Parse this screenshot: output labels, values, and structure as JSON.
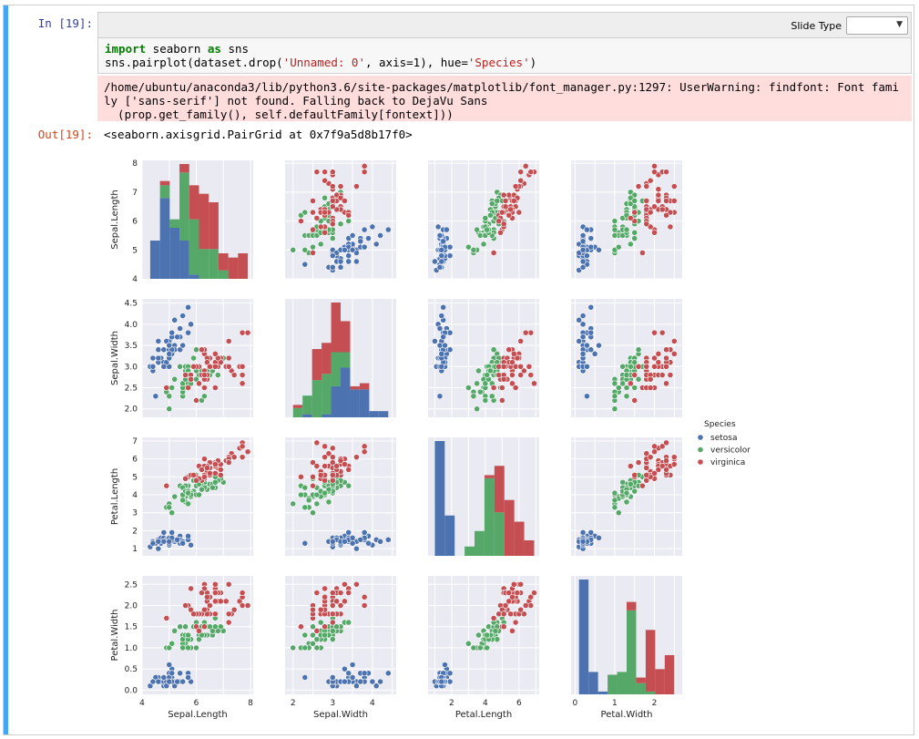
{
  "cell": {
    "in_prompt": "In [19]:",
    "out_prompt": "Out[19]:",
    "slide_type_label": "Slide Type",
    "slide_type_value": "",
    "code_line1_kw1": "import",
    "code_line1_mid": " seaborn ",
    "code_line1_kw2": "as",
    "code_line1_end": " sns",
    "code_line2_a": "sns.pairplot(dataset.drop(",
    "code_line2_s1": "'Unnamed: 0'",
    "code_line2_b": ", axis=1), hue=",
    "code_line2_s2": "'Species'",
    "code_line2_c": ")",
    "stderr_line1": "/home/ubuntu/anaconda3/lib/python3.6/site-packages/matplotlib/font_manager.py:1297: UserWarning: findfont: Font fami",
    "stderr_line2": "ly ['sans-serif'] not found. Falling back to DejaVu Sans",
    "stderr_line3": "  (prop.get_family(), self.defaultFamily[fontext]))",
    "output_text": "<seaborn.axisgrid.PairGrid at 0x7f9a5d8b17f0>"
  },
  "colors": {
    "setosa": "#4c72b0",
    "versicolor": "#55a868",
    "virginica": "#c44e52",
    "panel_bg": "#eaeaf2"
  },
  "chart_data": {
    "type": "scatter",
    "title": "",
    "variables": [
      "Sepal.Length",
      "Sepal.Width",
      "Petal.Length",
      "Petal.Width"
    ],
    "ranges": {
      "Sepal.Length": [
        4,
        8.1
      ],
      "Sepal.Width": [
        1.8,
        4.6
      ],
      "Petal.Length": [
        0.6,
        7.2
      ],
      "Petal.Width": [
        -0.1,
        2.7
      ]
    },
    "ticks": {
      "Sepal.Length": [
        4,
        5,
        6,
        7,
        8
      ],
      "Sepal.Width": [
        2.0,
        2.5,
        3.0,
        3.5,
        4.0,
        4.5
      ],
      "Petal.Length": [
        1,
        2,
        3,
        4,
        5,
        6,
        7
      ],
      "Petal.Width": [
        0.0,
        0.5,
        1.0,
        1.5,
        2.0,
        2.5
      ]
    },
    "xticks": {
      "Sepal.Length": [
        4,
        6,
        8
      ],
      "Sepal.Width": [
        2,
        3,
        4
      ],
      "Petal.Length": [
        2,
        4,
        6
      ],
      "Petal.Width": [
        0,
        1,
        2
      ]
    },
    "legend": {
      "title": "Species",
      "placement": "right",
      "entries": [
        "setosa",
        "versicolor",
        "virginica"
      ]
    },
    "grid": true,
    "series": [
      {
        "name": "setosa",
        "x": [
          [
            5.1,
            3.5,
            1.4,
            0.2
          ],
          [
            4.9,
            3.0,
            1.4,
            0.2
          ],
          [
            4.7,
            3.2,
            1.3,
            0.2
          ],
          [
            4.6,
            3.1,
            1.5,
            0.2
          ],
          [
            5.0,
            3.6,
            1.4,
            0.2
          ],
          [
            5.4,
            3.9,
            1.7,
            0.4
          ],
          [
            4.6,
            3.4,
            1.4,
            0.3
          ],
          [
            5.0,
            3.4,
            1.5,
            0.2
          ],
          [
            4.4,
            2.9,
            1.4,
            0.2
          ],
          [
            4.9,
            3.1,
            1.5,
            0.1
          ],
          [
            5.4,
            3.7,
            1.5,
            0.2
          ],
          [
            4.8,
            3.4,
            1.6,
            0.2
          ],
          [
            4.8,
            3.0,
            1.4,
            0.1
          ],
          [
            4.3,
            3.0,
            1.1,
            0.1
          ],
          [
            5.8,
            4.0,
            1.2,
            0.2
          ],
          [
            5.7,
            4.4,
            1.5,
            0.4
          ],
          [
            5.4,
            3.9,
            1.3,
            0.4
          ],
          [
            5.1,
            3.5,
            1.4,
            0.3
          ],
          [
            5.7,
            3.8,
            1.7,
            0.3
          ],
          [
            5.1,
            3.8,
            1.5,
            0.3
          ],
          [
            5.4,
            3.4,
            1.7,
            0.2
          ],
          [
            5.1,
            3.7,
            1.5,
            0.4
          ],
          [
            4.6,
            3.6,
            1.0,
            0.2
          ],
          [
            5.1,
            3.3,
            1.7,
            0.5
          ],
          [
            4.8,
            3.4,
            1.9,
            0.2
          ],
          [
            5.0,
            3.0,
            1.6,
            0.2
          ],
          [
            5.0,
            3.4,
            1.6,
            0.4
          ],
          [
            5.2,
            3.5,
            1.5,
            0.2
          ],
          [
            5.2,
            3.4,
            1.4,
            0.2
          ],
          [
            4.7,
            3.2,
            1.6,
            0.2
          ],
          [
            4.8,
            3.1,
            1.6,
            0.2
          ],
          [
            5.4,
            3.4,
            1.5,
            0.4
          ],
          [
            5.2,
            4.1,
            1.5,
            0.1
          ],
          [
            5.5,
            4.2,
            1.4,
            0.2
          ],
          [
            4.9,
            3.1,
            1.5,
            0.2
          ],
          [
            5.0,
            3.2,
            1.2,
            0.2
          ],
          [
            5.5,
            3.5,
            1.3,
            0.2
          ],
          [
            4.9,
            3.6,
            1.4,
            0.1
          ],
          [
            4.4,
            3.0,
            1.3,
            0.2
          ],
          [
            5.1,
            3.4,
            1.5,
            0.2
          ],
          [
            5.0,
            3.5,
            1.3,
            0.3
          ],
          [
            4.5,
            2.3,
            1.3,
            0.3
          ],
          [
            4.4,
            3.2,
            1.3,
            0.2
          ],
          [
            5.0,
            3.5,
            1.6,
            0.6
          ],
          [
            5.1,
            3.8,
            1.9,
            0.4
          ],
          [
            4.8,
            3.0,
            1.4,
            0.3
          ],
          [
            5.1,
            3.8,
            1.6,
            0.2
          ],
          [
            4.6,
            3.2,
            1.4,
            0.2
          ],
          [
            5.3,
            3.7,
            1.5,
            0.2
          ],
          [
            5.0,
            3.3,
            1.4,
            0.2
          ]
        ]
      },
      {
        "name": "versicolor",
        "x": [
          [
            7.0,
            3.2,
            4.7,
            1.4
          ],
          [
            6.4,
            3.2,
            4.5,
            1.5
          ],
          [
            6.9,
            3.1,
            4.9,
            1.5
          ],
          [
            5.5,
            2.3,
            4.0,
            1.3
          ],
          [
            6.5,
            2.8,
            4.6,
            1.5
          ],
          [
            5.7,
            2.8,
            4.5,
            1.3
          ],
          [
            6.3,
            3.3,
            4.7,
            1.6
          ],
          [
            4.9,
            2.4,
            3.3,
            1.0
          ],
          [
            6.6,
            2.9,
            4.6,
            1.3
          ],
          [
            5.2,
            2.7,
            3.9,
            1.4
          ],
          [
            5.0,
            2.0,
            3.5,
            1.0
          ],
          [
            5.9,
            3.0,
            4.2,
            1.5
          ],
          [
            6.0,
            2.2,
            4.0,
            1.0
          ],
          [
            6.1,
            2.9,
            4.7,
            1.4
          ],
          [
            5.6,
            2.9,
            3.6,
            1.3
          ],
          [
            6.7,
            3.1,
            4.4,
            1.4
          ],
          [
            5.6,
            3.0,
            4.5,
            1.5
          ],
          [
            5.8,
            2.7,
            4.1,
            1.0
          ],
          [
            6.2,
            2.2,
            4.5,
            1.5
          ],
          [
            5.6,
            2.5,
            3.9,
            1.1
          ],
          [
            5.9,
            3.2,
            4.8,
            1.8
          ],
          [
            6.1,
            2.8,
            4.0,
            1.3
          ],
          [
            6.3,
            2.5,
            4.9,
            1.5
          ],
          [
            6.1,
            2.8,
            4.7,
            1.2
          ],
          [
            6.4,
            2.9,
            4.3,
            1.3
          ],
          [
            6.6,
            3.0,
            4.4,
            1.4
          ],
          [
            6.8,
            2.8,
            4.8,
            1.4
          ],
          [
            6.7,
            3.0,
            5.0,
            1.7
          ],
          [
            6.0,
            2.9,
            4.5,
            1.5
          ],
          [
            5.7,
            2.6,
            3.5,
            1.0
          ],
          [
            5.5,
            2.4,
            3.8,
            1.1
          ],
          [
            5.5,
            2.4,
            3.7,
            1.0
          ],
          [
            5.8,
            2.7,
            3.9,
            1.2
          ],
          [
            6.0,
            2.7,
            5.1,
            1.6
          ],
          [
            5.4,
            3.0,
            4.5,
            1.5
          ],
          [
            6.0,
            3.4,
            4.5,
            1.6
          ],
          [
            6.7,
            3.1,
            4.7,
            1.5
          ],
          [
            6.3,
            2.3,
            4.4,
            1.3
          ],
          [
            5.6,
            3.0,
            4.1,
            1.3
          ],
          [
            5.5,
            2.5,
            4.0,
            1.3
          ],
          [
            5.5,
            2.6,
            4.4,
            1.2
          ],
          [
            6.1,
            3.0,
            4.6,
            1.4
          ],
          [
            5.8,
            2.6,
            4.0,
            1.2
          ],
          [
            5.0,
            2.3,
            3.3,
            1.0
          ],
          [
            5.6,
            2.7,
            4.2,
            1.3
          ],
          [
            5.7,
            3.0,
            4.2,
            1.2
          ],
          [
            5.7,
            2.9,
            4.2,
            1.3
          ],
          [
            6.2,
            2.9,
            4.3,
            1.3
          ],
          [
            5.1,
            2.5,
            3.0,
            1.1
          ],
          [
            5.7,
            2.8,
            4.1,
            1.3
          ]
        ]
      },
      {
        "name": "virginica",
        "x": [
          [
            6.3,
            3.3,
            6.0,
            2.5
          ],
          [
            5.8,
            2.7,
            5.1,
            1.9
          ],
          [
            7.1,
            3.0,
            5.9,
            2.1
          ],
          [
            6.3,
            2.9,
            5.6,
            1.8
          ],
          [
            6.5,
            3.0,
            5.8,
            2.2
          ],
          [
            7.6,
            3.0,
            6.6,
            2.1
          ],
          [
            4.9,
            2.5,
            4.5,
            1.7
          ],
          [
            7.3,
            2.9,
            6.3,
            1.8
          ],
          [
            6.7,
            2.5,
            5.8,
            1.8
          ],
          [
            7.2,
            3.6,
            6.1,
            2.5
          ],
          [
            6.5,
            3.2,
            5.1,
            2.0
          ],
          [
            6.4,
            2.7,
            5.3,
            1.9
          ],
          [
            6.8,
            3.0,
            5.5,
            2.1
          ],
          [
            5.7,
            2.5,
            5.0,
            2.0
          ],
          [
            5.8,
            2.8,
            5.1,
            2.4
          ],
          [
            6.4,
            3.2,
            5.3,
            2.3
          ],
          [
            6.5,
            3.0,
            5.5,
            1.8
          ],
          [
            7.7,
            3.8,
            6.7,
            2.2
          ],
          [
            7.7,
            2.6,
            6.9,
            2.3
          ],
          [
            6.0,
            2.2,
            5.0,
            1.5
          ],
          [
            6.9,
            3.2,
            5.7,
            2.3
          ],
          [
            5.6,
            2.8,
            4.9,
            2.0
          ],
          [
            7.7,
            2.8,
            6.7,
            2.0
          ],
          [
            6.3,
            2.7,
            4.9,
            1.8
          ],
          [
            6.7,
            3.3,
            5.7,
            2.1
          ],
          [
            7.2,
            3.2,
            6.0,
            1.8
          ],
          [
            6.2,
            2.8,
            4.8,
            1.8
          ],
          [
            6.1,
            3.0,
            4.9,
            1.8
          ],
          [
            6.4,
            2.8,
            5.6,
            2.1
          ],
          [
            7.2,
            3.0,
            5.8,
            1.6
          ],
          [
            7.4,
            2.8,
            6.1,
            1.9
          ],
          [
            7.9,
            3.8,
            6.4,
            2.0
          ],
          [
            6.4,
            2.8,
            5.6,
            2.2
          ],
          [
            6.3,
            2.8,
            5.1,
            1.5
          ],
          [
            6.1,
            2.6,
            5.6,
            1.4
          ],
          [
            7.7,
            3.0,
            6.1,
            2.3
          ],
          [
            6.3,
            3.4,
            5.6,
            2.4
          ],
          [
            6.4,
            3.1,
            5.5,
            1.8
          ],
          [
            6.0,
            3.0,
            4.8,
            1.8
          ],
          [
            6.9,
            3.1,
            5.4,
            2.1
          ],
          [
            6.7,
            3.1,
            5.6,
            2.4
          ],
          [
            6.9,
            3.1,
            5.1,
            2.3
          ],
          [
            5.8,
            2.7,
            5.1,
            1.9
          ],
          [
            6.8,
            3.2,
            5.9,
            2.3
          ],
          [
            6.7,
            3.3,
            5.7,
            2.5
          ],
          [
            6.7,
            3.0,
            5.2,
            2.3
          ],
          [
            6.3,
            2.5,
            5.0,
            1.9
          ],
          [
            6.5,
            3.0,
            5.2,
            2.0
          ],
          [
            6.2,
            3.4,
            5.4,
            2.3
          ],
          [
            5.9,
            3.0,
            5.1,
            1.8
          ]
        ]
      }
    ]
  }
}
